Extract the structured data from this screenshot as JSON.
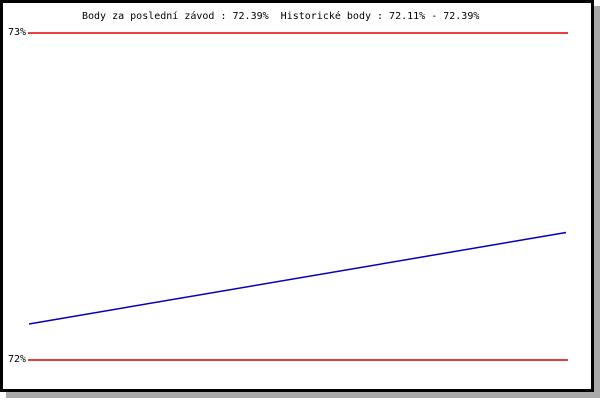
{
  "chart_data": {
    "type": "line",
    "title": "Body za poslední závod : 72.39%  Historické body : 72.11% - 72.39%",
    "last_race_points": "72.39%",
    "historical_points_range": "72.11% - 72.39%",
    "xlabel": "",
    "ylabel": "",
    "ylim": [
      72,
      73
    ],
    "yticks": [
      {
        "value": 73,
        "label": "73%"
      },
      {
        "value": 72,
        "label": "72%"
      }
    ],
    "grid": "horizontal-only",
    "gridline_color": "#e00000",
    "legend": false,
    "series": [
      {
        "name": "body",
        "color": "#0000bb",
        "points": [
          {
            "x": 0,
            "y": 72.11
          },
          {
            "x": 1,
            "y": 72.39
          }
        ]
      }
    ]
  },
  "colors": {
    "background": "#ffffff",
    "frame_border": "#000000",
    "frame_shadow": "#a9a9a9",
    "text": "#000000"
  }
}
